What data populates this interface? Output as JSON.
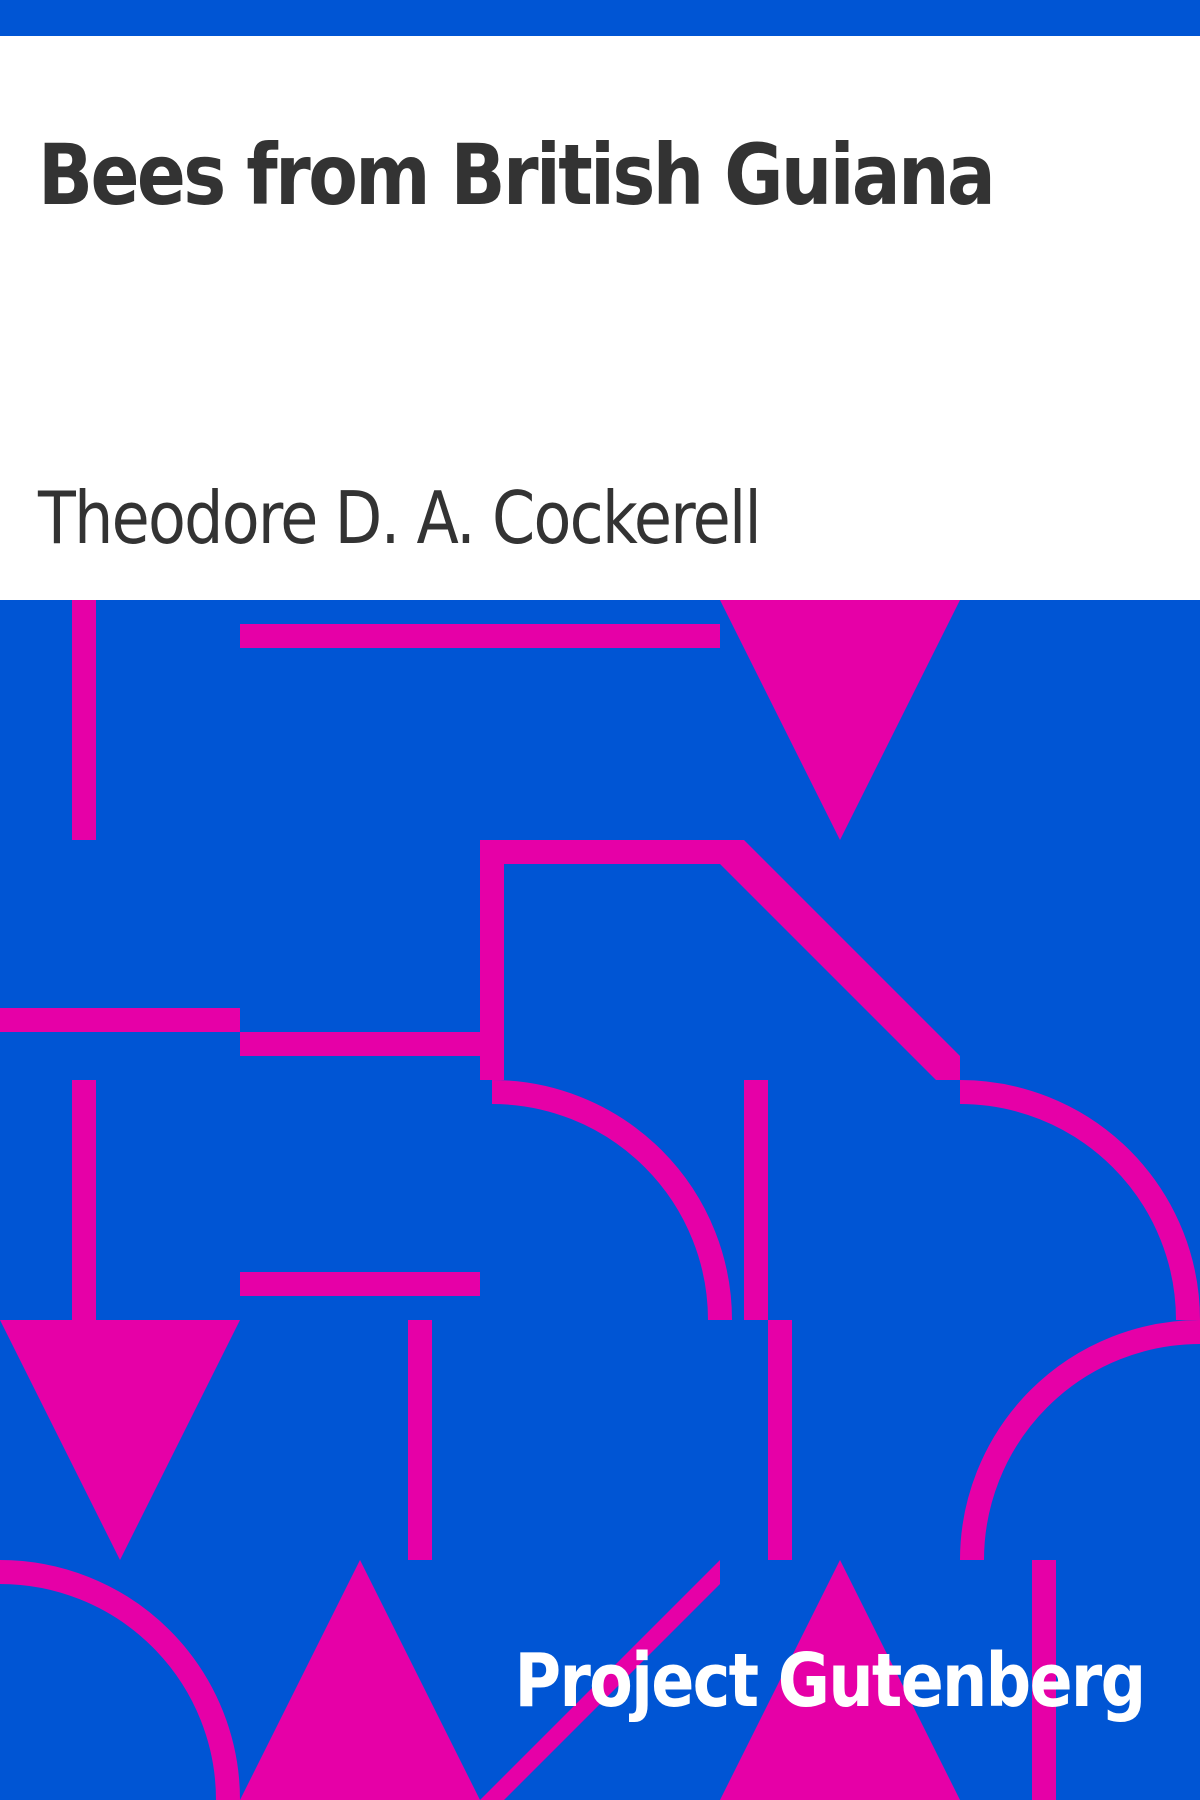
{
  "book": {
    "title": "Bees from British Guiana",
    "author": "Theodore D. A. Cockerell",
    "publisher": "Project Gutenberg"
  },
  "colors": {
    "background_blue": "#0055d4",
    "pattern_magenta": "#e600a7",
    "text_dark": "#333333",
    "text_light": "#ffffff",
    "header_bg": "#ffffff"
  }
}
